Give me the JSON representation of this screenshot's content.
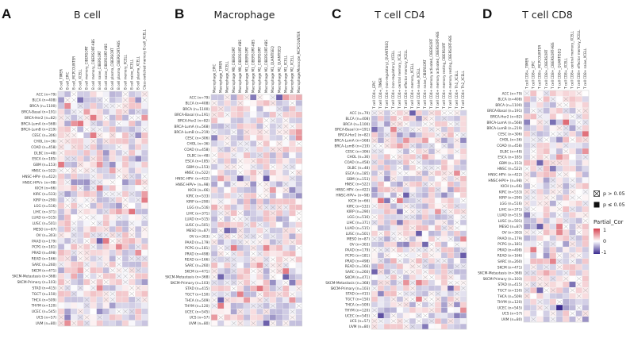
{
  "panels": [
    {
      "letter": "A",
      "title": "B cell",
      "columns": [
        "B cell_TIMER",
        "B cell_EPIC",
        "B cell_MCPCOUNTER",
        "B cell_XCELL",
        "B cell memory_CIBERSORT",
        "B cell memory_CIBERSORT-ABS",
        "B cell naive_CIBERSORT",
        "B cell naive_CIBERSORT-ABS",
        "B cell plasma_CIBERSORT",
        "B cell plasma_CIBERSORT-ABS",
        "B cell memory_XCELL",
        "B cell naive_XCELL",
        "B cell plasma_XCELL",
        "Class-switched memory B cell_XCELL"
      ]
    },
    {
      "letter": "B",
      "title": "Macrophage",
      "columns": [
        "Macrophage_EPIC",
        "Macrophage_TIMER",
        "Macrophage_XCELL",
        "Macrophage M0_CIBERSORT",
        "Macrophage M0_CIBERSORT-ABS",
        "Macrophage M1_CIBERSORT",
        "Macrophage M1_CIBERSORT-ABS",
        "Macrophage M2_CIBERSORT",
        "Macrophage M2_CIBERSORT-ABS",
        "Macrophage M1_QUANTISEQ",
        "Macrophage M2_QUANTISEQ",
        "Macrophage M1_XCELL",
        "Macrophage M2_XCELL",
        "Macrophage/Monocyte_MCPCOUNTER"
      ]
    },
    {
      "letter": "C",
      "title": "T cell CD4",
      "columns": [
        "T cell CD4+_EPIC",
        "T cell CD4+_TIMER",
        "T cell CD4+ (non-regulatory)_QUANTISEQ",
        "T cell CD4+ (non-regulatory)_XCELL",
        "T cell CD4+ central memory_XCELL",
        "T cell CD4+ effector memory_XCELL",
        "T cell CD4+ memory_XCELL",
        "T cell CD4+ naive_XCELL",
        "T cell CD4+ naive_CIBERSORT",
        "T cell CD4+ memory activated_CIBERSORT",
        "T cell CD4+ memory activated_CIBERSORT-ABS",
        "T cell CD4+ memory resting_CIBERSORT",
        "T cell CD4+ memory resting_CIBERSORT-ABS",
        "T cell CD4+ Th1_XCELL",
        "T cell CD4+ Th2_XCELL"
      ]
    },
    {
      "letter": "D",
      "title": "T cell CD8",
      "columns": [
        "T cell CD8+_TIMER",
        "T cell CD8+_EPIC",
        "T cell CD8+_MCPCOUNTER",
        "T cell CD8+_CIBERSORT",
        "T cell CD8+_CIBERSORT-ABS",
        "T cell CD8+_QUANTISEQ",
        "T cell CD8+_XCELL",
        "T cell CD8+ central memory_XCELL",
        "T cell CD8+ effector memory_XCELL",
        "T cell CD8+ naive_XCELL"
      ]
    }
  ],
  "rows": [
    "ACC (n=79)",
    "BLCA (n=408)",
    "BRCA (n=1100)",
    "BRCA-Basal (n=191)",
    "BRCA-Her2 (n=82)",
    "BRCA-LumA (n=568)",
    "BRCA-LumB (n=219)",
    "CESC (n=306)",
    "CHOL (n=36)",
    "COAD (n=458)",
    "DLBC (n=48)",
    "ESCA (n=185)",
    "GBM (n=153)",
    "HNSC (n=522)",
    "HNSC-HPV- (n=422)",
    "HNSC-HPV+ (n=98)",
    "KICH (n=66)",
    "KIRC (n=533)",
    "KIRP (n=290)",
    "LGG (n=516)",
    "LIHC (n=371)",
    "LUAD (n=515)",
    "LUSC (n=501)",
    "MESO (n=87)",
    "OV (n=303)",
    "PAAD (n=179)",
    "PCPG (n=181)",
    "PRAD (n=498)",
    "READ (n=166)",
    "SARC (n=260)",
    "SKCM (n=471)",
    "SKCM-Metastasis (n=368)",
    "SKCM-Primary (n=103)",
    "STAD (n=415)",
    "TGCT (n=150)",
    "THCA (n=509)",
    "THYM (n=120)",
    "UCEC (n=545)",
    "UCS (n=57)",
    "UVM (n=80)"
  ],
  "legend": {
    "sig_ns": "p > 0.05",
    "sig_s": "p ≤ 0.05",
    "title": "Partial_Cor",
    "ticks": [
      "1",
      "0",
      "-1"
    ],
    "colors": {
      "high": "#d6404e",
      "mid": "#ffffff",
      "low": "#3b2b8f"
    }
  },
  "chart_data": [
    {
      "type": "heatmap",
      "title": "B cell",
      "panel": "A",
      "rows_ref": "rows",
      "value_range": [
        -1,
        1
      ],
      "note": "cells: Partial_Cor color; crossed cells = p > 0.05"
    },
    {
      "type": "heatmap",
      "title": "Macrophage",
      "panel": "B",
      "rows_ref": "rows",
      "value_range": [
        -1,
        1
      ],
      "note": "cells: Partial_Cor color; crossed cells = p > 0.05"
    },
    {
      "type": "heatmap",
      "title": "T cell CD4",
      "panel": "C",
      "rows_ref": "rows",
      "value_range": [
        -1,
        1
      ],
      "note": "cells: Partial_Cor color; crossed cells = p > 0.05"
    },
    {
      "type": "heatmap",
      "title": "T cell CD8",
      "panel": "D",
      "rows_ref": "rows",
      "value_range": [
        -1,
        1
      ],
      "note": "cells: Partial_Cor color; crossed cells = p > 0.05"
    }
  ]
}
